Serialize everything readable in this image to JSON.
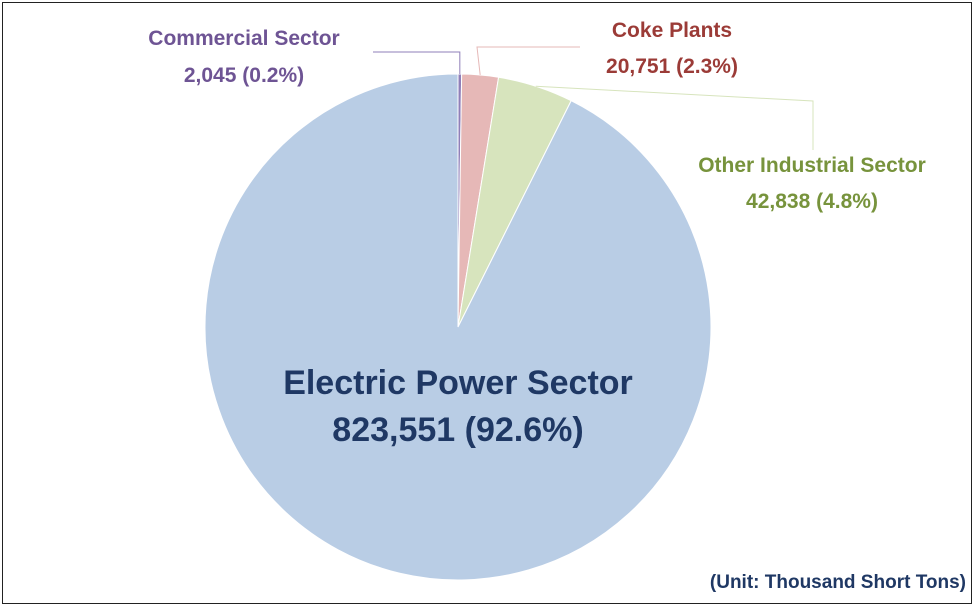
{
  "chart_data": {
    "type": "pie",
    "note": "(Unit: Thousand Short Tons)",
    "slices": [
      {
        "label": "Commercial Sector",
        "value": 2045,
        "value_text": "2,045",
        "percent_text": "(0.2%)",
        "color": "#8f7fb8",
        "label_color": "#6e5494"
      },
      {
        "label": "Coke Plants",
        "value": 20751,
        "value_text": "20,751",
        "percent_text": "(2.3%)",
        "color": "#e6b8b7",
        "label_color": "#9b3b37"
      },
      {
        "label": "Other Industrial Sector",
        "value": 42838,
        "value_text": "42,838",
        "percent_text": "(4.8%)",
        "color": "#d7e4bd",
        "label_color": "#77933c"
      },
      {
        "label": "Electric Power Sector",
        "value": 823551,
        "value_text": "823,551",
        "percent_text": "(92.6%)",
        "color": "#b9cde5",
        "label_color": "#1f3864"
      }
    ]
  }
}
